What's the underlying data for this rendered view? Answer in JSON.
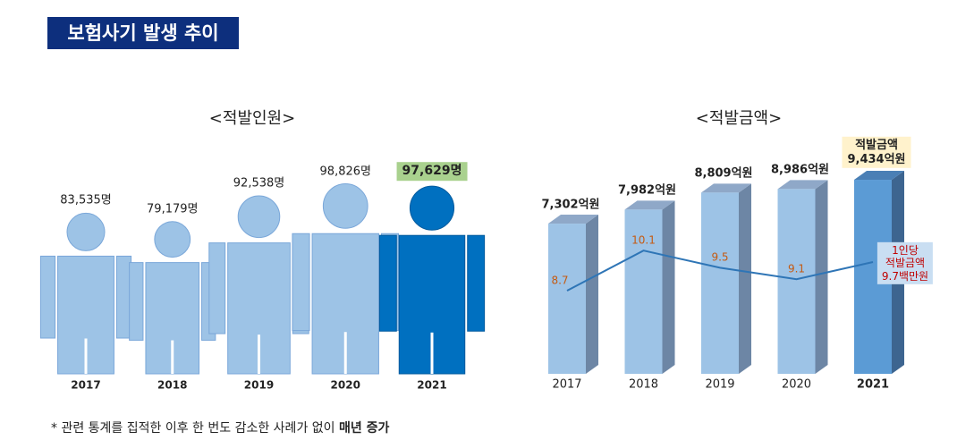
{
  "header": {
    "title": "보험사기 발생 추이"
  },
  "chart_data": [
    {
      "type": "pictogram",
      "title": "<적발인원>",
      "categories": [
        "2017",
        "2018",
        "2019",
        "2020",
        "2021"
      ],
      "values": [
        83535,
        79179,
        92538,
        98826,
        97629
      ],
      "value_labels": [
        "83,535명",
        "79,179명",
        "92,538명",
        "98,826명",
        "97,629명"
      ],
      "color": "#9dc3e6",
      "highlight_color": "#0070c0"
    },
    {
      "type": "bar",
      "title": "<적발금액>",
      "categories": [
        "2017",
        "2018",
        "2019",
        "2020",
        "2021"
      ],
      "series": [
        {
          "values": [
            7302,
            7982,
            8809,
            8986,
            9434
          ],
          "value_labels": [
            "7,302억원",
            "7,982억원",
            "8,809억원",
            "8,986억원",
            "적발금액\n9,434억원"
          ],
          "color": "#9dc3e6",
          "highlight_color": "#5b9bd5"
        },
        {
          "type": "line",
          "values": [
            8.7,
            10.1,
            9.5,
            9.1,
            9.7
          ],
          "value_labels": [
            "8.7",
            "10.1",
            "9.5",
            "9.1",
            "1인당\n적발금액\n9.7백만원"
          ],
          "color": "#2e75b6"
        }
      ]
    }
  ],
  "footnote": {
    "text": "* 관련 통계를 집적한 이후 한 번도 감소한 사례가 없이 ",
    "emphasis": "매년 증가"
  }
}
